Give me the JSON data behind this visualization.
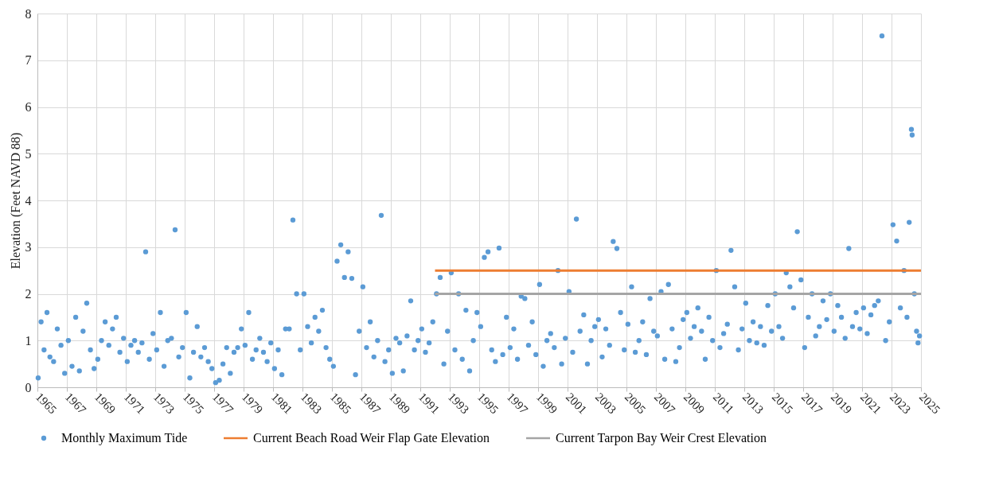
{
  "chart_data": {
    "type": "scatter",
    "ylabel": "Elevation (Feet NAVD 88)",
    "ylim": [
      0,
      8
    ],
    "yticks": [
      0,
      1,
      2,
      3,
      4,
      5,
      6,
      7,
      8
    ],
    "xlim": [
      1965,
      2025
    ],
    "xticks": [
      1965,
      1967,
      1969,
      1971,
      1973,
      1975,
      1977,
      1979,
      1981,
      1983,
      1985,
      1987,
      1989,
      1991,
      1993,
      1995,
      1997,
      1999,
      2001,
      2003,
      2005,
      2007,
      2009,
      2011,
      2013,
      2015,
      2017,
      2019,
      2021,
      2023,
      2025
    ],
    "grid": true,
    "legend": "bottom",
    "marker": "circle",
    "series": [
      {
        "name": "Monthly Maximum Tide",
        "color": "#5b9bd5",
        "x": [
          1965.05,
          1965.25,
          1965.45,
          1965.65,
          1965.85,
          1966.1,
          1966.35,
          1966.6,
          1966.85,
          1967.1,
          1967.35,
          1967.6,
          1967.85,
          1968.1,
          1968.35,
          1968.6,
          1968.85,
          1969.1,
          1969.35,
          1969.6,
          1969.85,
          1970.1,
          1970.35,
          1970.6,
          1970.85,
          1971.1,
          1971.35,
          1971.6,
          1971.85,
          1972.1,
          1972.35,
          1972.6,
          1972.85,
          1973.1,
          1973.35,
          1973.6,
          1973.85,
          1974.1,
          1974.35,
          1974.6,
          1974.85,
          1975.1,
          1975.35,
          1975.6,
          1975.85,
          1976.1,
          1976.35,
          1976.6,
          1976.85,
          1977.1,
          1977.35,
          1977.6,
          1977.85,
          1978.1,
          1978.35,
          1978.6,
          1978.85,
          1979.1,
          1979.35,
          1979.6,
          1979.85,
          1980.1,
          1980.35,
          1980.6,
          1980.85,
          1981.1,
          1981.35,
          1981.6,
          1981.85,
          1982.1,
          1982.35,
          1982.6,
          1982.85,
          1983.1,
          1983.35,
          1983.6,
          1983.85,
          1984.1,
          1984.35,
          1984.6,
          1984.85,
          1985.1,
          1985.35,
          1985.6,
          1985.85,
          1986.1,
          1986.35,
          1986.6,
          1986.85,
          1987.1,
          1987.35,
          1987.6,
          1987.85,
          1988.1,
          1988.35,
          1988.6,
          1988.85,
          1989.1,
          1989.35,
          1989.6,
          1989.85,
          1990.1,
          1990.35,
          1990.6,
          1990.85,
          1991.1,
          1991.35,
          1991.6,
          1991.85,
          1992.1,
          1992.35,
          1992.6,
          1992.85,
          1993.1,
          1993.35,
          1993.6,
          1993.85,
          1994.1,
          1994.35,
          1994.6,
          1994.85,
          1995.1,
          1995.35,
          1995.6,
          1995.85,
          1996.1,
          1996.35,
          1996.6,
          1996.85,
          1997.1,
          1997.35,
          1997.6,
          1997.85,
          1998.1,
          1998.35,
          1998.6,
          1998.85,
          1999.1,
          1999.35,
          1999.6,
          1999.85,
          2000.1,
          2000.35,
          2000.6,
          2000.85,
          2001.1,
          2001.35,
          2001.6,
          2001.85,
          2002.1,
          2002.35,
          2002.6,
          2002.85,
          2003.1,
          2003.35,
          2003.6,
          2003.85,
          2004.1,
          2004.35,
          2004.6,
          2004.85,
          2005.1,
          2005.35,
          2005.6,
          2005.85,
          2006.1,
          2006.35,
          2006.6,
          2006.85,
          2007.1,
          2007.35,
          2007.6,
          2007.85,
          2008.1,
          2008.35,
          2008.6,
          2008.85,
          2009.1,
          2009.35,
          2009.6,
          2009.85,
          2010.1,
          2010.35,
          2010.6,
          2010.85,
          2011.1,
          2011.35,
          2011.6,
          2011.85,
          2012.1,
          2012.35,
          2012.6,
          2012.85,
          2013.1,
          2013.35,
          2013.6,
          2013.85,
          2014.1,
          2014.35,
          2014.6,
          2014.85,
          2015.1,
          2015.35,
          2015.6,
          2015.85,
          2016.1,
          2016.35,
          2016.6,
          2016.85,
          2017.1,
          2017.35,
          2017.6,
          2017.85,
          2018.1,
          2018.35,
          2018.6,
          2018.85,
          2019.1,
          2019.35,
          2019.6,
          2019.85,
          2020.1,
          2020.35,
          2020.6,
          2020.85,
          2021.1,
          2021.35,
          2021.6,
          2021.85,
          2022.1,
          2022.35,
          2022.6,
          2022.85,
          2023.1,
          2023.35,
          2023.6,
          2023.85,
          2024.05,
          2024.2,
          2024.35,
          2024.4,
          2024.55,
          2024.7,
          2024.8,
          2024.9
        ],
        "values": [
          0.2,
          1.4,
          0.8,
          1.6,
          0.65,
          0.55,
          1.25,
          0.9,
          0.3,
          1.0,
          0.45,
          1.5,
          0.35,
          1.2,
          1.8,
          0.8,
          0.4,
          0.6,
          1.0,
          1.4,
          0.9,
          1.25,
          1.5,
          0.75,
          1.05,
          0.55,
          0.9,
          1.0,
          0.75,
          0.95,
          2.9,
          0.6,
          1.15,
          0.8,
          1.6,
          0.45,
          1.0,
          1.05,
          3.37,
          0.65,
          0.85,
          1.6,
          0.2,
          0.75,
          1.3,
          0.65,
          0.85,
          0.55,
          0.4,
          0.1,
          0.15,
          0.5,
          0.85,
          0.3,
          0.75,
          0.85,
          1.25,
          0.9,
          1.6,
          0.6,
          0.8,
          1.05,
          0.75,
          0.55,
          0.95,
          0.4,
          0.8,
          0.27,
          1.25,
          1.25,
          3.58,
          2.0,
          0.8,
          2.0,
          1.3,
          0.95,
          1.5,
          1.2,
          1.65,
          0.85,
          0.6,
          0.45,
          2.7,
          3.05,
          2.35,
          2.9,
          2.33,
          0.27,
          1.2,
          2.15,
          0.85,
          1.4,
          0.65,
          1.0,
          3.68,
          0.55,
          0.8,
          0.3,
          1.05,
          0.95,
          0.35,
          1.1,
          1.85,
          0.8,
          1.0,
          1.25,
          0.75,
          0.95,
          1.4,
          2.0,
          2.35,
          0.5,
          1.2,
          2.45,
          0.8,
          2.0,
          0.6,
          1.65,
          0.35,
          1.0,
          1.6,
          1.3,
          2.78,
          2.9,
          0.8,
          0.55,
          2.98,
          0.7,
          1.5,
          0.85,
          1.25,
          0.6,
          1.95,
          1.9,
          0.9,
          1.4,
          0.7,
          2.2,
          0.45,
          1.0,
          1.15,
          0.85,
          2.5,
          0.5,
          1.05,
          2.05,
          0.75,
          3.6,
          1.2,
          1.55,
          0.5,
          1.0,
          1.3,
          1.45,
          0.65,
          1.25,
          0.9,
          3.12,
          2.97,
          1.6,
          0.8,
          1.35,
          2.15,
          0.75,
          1.0,
          1.4,
          0.7,
          1.9,
          1.2,
          1.1,
          2.05,
          0.6,
          2.2,
          1.25,
          0.55,
          0.85,
          1.45,
          1.6,
          1.05,
          1.3,
          1.7,
          1.2,
          0.6,
          1.5,
          1.0,
          2.5,
          0.85,
          1.15,
          1.35,
          2.93,
          2.15,
          0.8,
          1.25,
          1.8,
          1.0,
          1.4,
          0.95,
          1.3,
          0.9,
          1.75,
          1.2,
          2.0,
          1.3,
          1.05,
          2.45,
          2.15,
          1.7,
          3.33,
          2.3,
          0.85,
          1.5,
          2.0,
          1.1,
          1.3,
          1.85,
          1.45,
          2.0,
          1.2,
          1.75,
          1.5,
          1.05,
          2.97,
          1.3,
          1.6,
          1.25,
          1.7,
          1.15,
          1.55,
          1.75,
          1.85,
          7.52,
          1.0,
          1.4,
          3.48,
          3.13,
          1.7,
          2.5,
          1.5,
          3.53,
          5.52,
          5.4,
          2.0,
          1.2,
          0.95,
          1.1
        ]
      },
      {
        "name": "Current Beach Road Weir Flap Gate Elevation",
        "type": "line",
        "marker": "none",
        "color": "#ed7d31",
        "x": [
          1992,
          2025
        ],
        "values": [
          2.5,
          2.5
        ]
      },
      {
        "name": "Current Tarpon Bay Weir Crest Elevation",
        "type": "line",
        "marker": "none",
        "color": "#a5a5a5",
        "x": [
          1992,
          2025
        ],
        "values": [
          2.0,
          2.0
        ]
      }
    ]
  }
}
